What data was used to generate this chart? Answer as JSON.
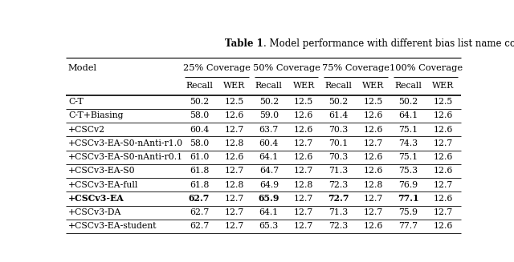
{
  "title_bold": "Table 1",
  "title_normal": ". Model performance with different bias list name coverage",
  "col_groups": [
    "25% Coverage",
    "50% Coverage",
    "75% Coverage",
    "100% Coverage"
  ],
  "sub_cols": [
    "Recall",
    "WER",
    "Recall",
    "WER",
    "Recall",
    "WER",
    "Recall",
    "WER"
  ],
  "models": [
    "C-T",
    "C-T+Biasing",
    "+CSCv2",
    "+CSCv3-EA-S0-nAnti-r1.0",
    "+CSCv3-EA-S0-nAnti-r0.1",
    "+CSCv3-EA-S0",
    "+CSCv3-EA-full",
    "+CSCv3-EA",
    "+CSCv3-DA",
    "+CSCv3-EA-student"
  ],
  "bold_model_row": 7,
  "data": [
    [
      "50.2",
      "12.5",
      "50.2",
      "12.5",
      "50.2",
      "12.5",
      "50.2",
      "12.5"
    ],
    [
      "58.0",
      "12.6",
      "59.0",
      "12.6",
      "61.4",
      "12.6",
      "64.1",
      "12.6"
    ],
    [
      "60.4",
      "12.7",
      "63.7",
      "12.6",
      "70.3",
      "12.6",
      "75.1",
      "12.6"
    ],
    [
      "58.0",
      "12.8",
      "60.4",
      "12.7",
      "70.1",
      "12.7",
      "74.3",
      "12.7"
    ],
    [
      "61.0",
      "12.6",
      "64.1",
      "12.6",
      "70.3",
      "12.6",
      "75.1",
      "12.6"
    ],
    [
      "61.8",
      "12.7",
      "64.7",
      "12.7",
      "71.3",
      "12.6",
      "75.3",
      "12.6"
    ],
    [
      "61.8",
      "12.8",
      "64.9",
      "12.8",
      "72.3",
      "12.8",
      "76.9",
      "12.7"
    ],
    [
      "62.7",
      "12.7",
      "65.9",
      "12.7",
      "72.7",
      "12.7",
      "77.1",
      "12.6"
    ],
    [
      "62.7",
      "12.7",
      "64.1",
      "12.7",
      "71.3",
      "12.7",
      "75.9",
      "12.7"
    ],
    [
      "62.7",
      "12.7",
      "65.3",
      "12.7",
      "72.3",
      "12.6",
      "77.7",
      "12.6"
    ]
  ],
  "bold_recall_indices": [
    0,
    2,
    4,
    6
  ],
  "figsize": [
    6.4,
    3.27
  ],
  "dpi": 100,
  "bg_color": "#ffffff",
  "font_size": 7.8,
  "title_font_size": 8.5,
  "header_font_size": 8.2
}
